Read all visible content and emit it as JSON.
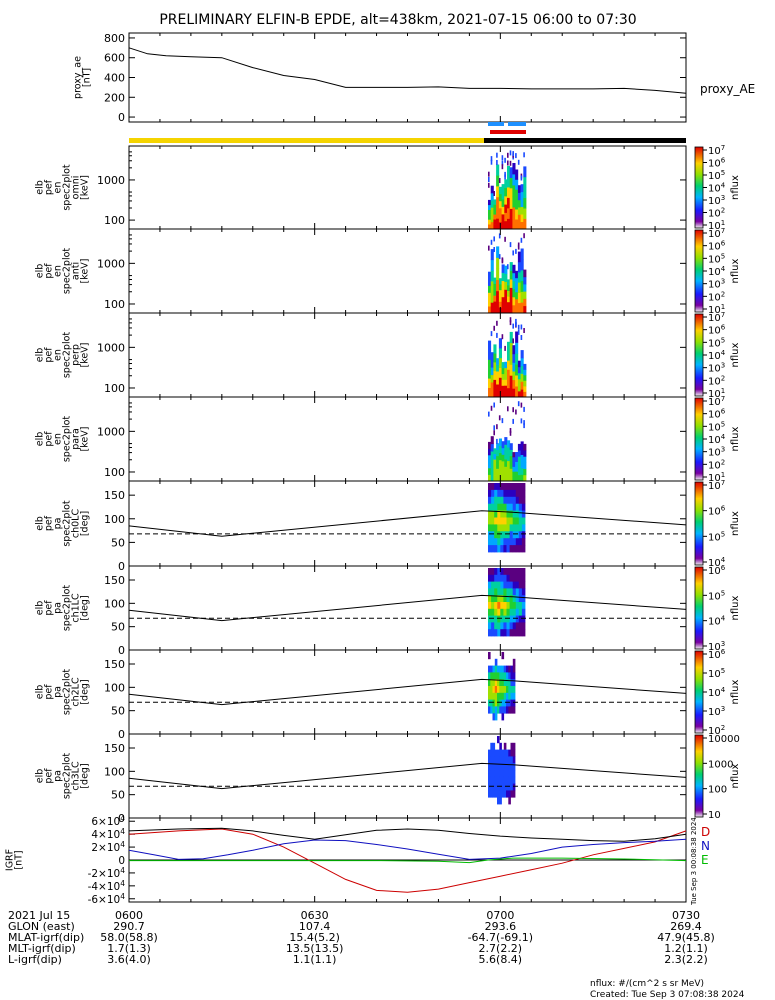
{
  "title": "PRELIMINARY ELFIN-B EPDE, alt=438km, 2021-07-15 06:00 to 07:30",
  "colors": {
    "gold": "#f5d400",
    "black": "#000000",
    "blue_bar": "#1e90ff",
    "red_bar": "#e00000",
    "grf_d": "#cc0000",
    "grf_n": "#1010c0",
    "grf_e": "#00bb00"
  },
  "chart_data": [
    {
      "id": "proxy_ae",
      "type": "line",
      "ylabel_lines": [
        "proxy_ae",
        "[nT]"
      ],
      "legend": "proxy_AE",
      "ylim": [
        -50,
        850
      ],
      "yticks": [
        "0",
        "200",
        "400",
        "600",
        "800"
      ],
      "x": [
        0,
        3,
        6,
        10,
        15,
        20,
        25,
        30,
        35,
        40,
        45,
        50,
        55,
        60,
        65,
        70,
        75,
        80,
        85,
        90
      ],
      "y": [
        700,
        640,
        620,
        610,
        600,
        500,
        420,
        380,
        300,
        300,
        300,
        305,
        290,
        290,
        285,
        285,
        285,
        290,
        270,
        240
      ]
    },
    {
      "id": "omni",
      "type": "heatmap",
      "ylabel_lines": [
        "elb",
        "pef",
        "en",
        "spec2plot",
        "omni",
        "[keV]"
      ],
      "yticks": [
        "100",
        "1000"
      ],
      "cbar_ticks": [
        "10^1",
        "10^2",
        "10^3",
        "10^4",
        "10^5",
        "10^6",
        "10^7"
      ],
      "cbar_label": "nflux"
    },
    {
      "id": "anti",
      "type": "heatmap",
      "ylabel_lines": [
        "elb",
        "pef",
        "en",
        "spec2plot",
        "anti",
        "[keV]"
      ],
      "yticks": [
        "100",
        "1000"
      ],
      "cbar_ticks": [
        "10^1",
        "10^2",
        "10^3",
        "10^4",
        "10^5",
        "10^6",
        "10^7"
      ],
      "cbar_label": "nflux"
    },
    {
      "id": "perp",
      "type": "heatmap",
      "ylabel_lines": [
        "elb",
        "pef",
        "en",
        "spec2plot",
        "perp",
        "[keV]"
      ],
      "yticks": [
        "100",
        "1000"
      ],
      "cbar_ticks": [
        "10^1",
        "10^2",
        "10^3",
        "10^4",
        "10^5",
        "10^6",
        "10^7"
      ],
      "cbar_label": "nflux"
    },
    {
      "id": "para",
      "type": "heatmap",
      "ylabel_lines": [
        "elb",
        "pef",
        "en",
        "spec2plot",
        "para",
        "[keV]"
      ],
      "yticks": [
        "100",
        "1000"
      ],
      "cbar_ticks": [
        "10^1",
        "10^2",
        "10^3",
        "10^4",
        "10^5",
        "10^6",
        "10^7"
      ],
      "cbar_label": "nflux"
    },
    {
      "id": "ch0LC",
      "type": "heatmap",
      "ylabel_lines": [
        "elb",
        "pef",
        "pa",
        "spec2plot",
        "ch0LC",
        "[deg]"
      ],
      "yticks": [
        "0",
        "50",
        "100",
        "150"
      ],
      "cbar_ticks": [
        "10^4",
        "10^5",
        "10^6",
        "10^7"
      ],
      "cbar_label": "nflux"
    },
    {
      "id": "ch1LC",
      "type": "heatmap",
      "ylabel_lines": [
        "elb",
        "pef",
        "pa",
        "spec2plot",
        "ch1LC",
        "[deg]"
      ],
      "yticks": [
        "0",
        "50",
        "100",
        "150"
      ],
      "cbar_ticks": [
        "10^3",
        "10^4",
        "10^5",
        "10^6"
      ],
      "cbar_label": "nflux"
    },
    {
      "id": "ch2LC",
      "type": "heatmap",
      "ylabel_lines": [
        "elb",
        "pef",
        "pa",
        "spec2plot",
        "ch2LC",
        "[deg]"
      ],
      "yticks": [
        "0",
        "50",
        "100",
        "150"
      ],
      "cbar_ticks": [
        "10^2",
        "10^3",
        "10^4",
        "10^5",
        "10^6"
      ],
      "cbar_label": "nflux"
    },
    {
      "id": "ch3LC",
      "type": "heatmap",
      "ylabel_lines": [
        "elb",
        "pef",
        "pa",
        "spec2plot",
        "ch3LC",
        "[deg]"
      ],
      "yticks": [
        "0",
        "50",
        "100",
        "150"
      ],
      "cbar_ticks": [
        "10",
        "100",
        "1000",
        "10000"
      ],
      "cbar_label": "nflux"
    },
    {
      "id": "igrf",
      "type": "line",
      "ylabel_lines": [
        "IGRF",
        "[nT]"
      ],
      "ylim": [
        -65000,
        65000
      ],
      "yticks": [
        "-6×10^4",
        "-4×10^4",
        "-2×10^4",
        "0",
        "2×10^4",
        "4×10^4",
        "6×10^4"
      ],
      "series": [
        {
          "name": "D",
          "color": "#cc0000",
          "x": [
            0,
            8,
            15,
            20,
            25,
            30,
            35,
            40,
            45,
            50,
            55,
            60,
            65,
            70,
            75,
            80,
            85,
            90
          ],
          "y": [
            40000,
            45000,
            48000,
            40000,
            20000,
            -5000,
            -30000,
            -47000,
            -50000,
            -45000,
            -35000,
            -25000,
            -15000,
            -5000,
            8000,
            18000,
            28000,
            45000
          ]
        },
        {
          "name": "N",
          "color": "#1010c0",
          "x": [
            0,
            4,
            8,
            12,
            16,
            20,
            25,
            30,
            35,
            40,
            45,
            50,
            55,
            60,
            65,
            70,
            75,
            80,
            85,
            90
          ],
          "y": [
            15000,
            8000,
            1000,
            2000,
            8000,
            15000,
            25000,
            31000,
            30000,
            24000,
            17000,
            9000,
            1000,
            3000,
            10000,
            20000,
            24000,
            27000,
            29000,
            32000
          ]
        },
        {
          "name": "E",
          "color": "#00bb00",
          "x": [
            0,
            10,
            20,
            30,
            40,
            50,
            55,
            58,
            62,
            70,
            80,
            90
          ],
          "y": [
            -1000,
            -1000,
            -1000,
            -1000,
            -1000,
            -2000,
            -4000,
            0,
            3000,
            3000,
            1500,
            -1000
          ]
        },
        {
          "name": "",
          "color": "#000000",
          "x": [
            0,
            8,
            15,
            20,
            25,
            30,
            35,
            40,
            45,
            50,
            55,
            60,
            65,
            70,
            75,
            80,
            85,
            90
          ],
          "y": [
            45000,
            48000,
            49000,
            45000,
            38000,
            32000,
            39000,
            46000,
            48000,
            46000,
            41000,
            37000,
            34000,
            32000,
            30000,
            29000,
            33000,
            40000
          ]
        }
      ],
      "legend": [
        "D",
        "N",
        "E"
      ]
    }
  ],
  "side_stamp": "Tue Sep  3 00:08:38 2024",
  "footer": {
    "rows": [
      {
        "label": "2021 Jul 15",
        "values": [
          "0600",
          "0630",
          "0700",
          "0730"
        ]
      },
      {
        "label": "GLON (east)",
        "values": [
          "290.7",
          "107.4",
          "293.6",
          "269.4"
        ]
      },
      {
        "label": "MLAT-igrf(dip)",
        "values": [
          "58.0(58.8)",
          "15.4(5.2)",
          "-64.7(-69.1)",
          "47.9(45.8)"
        ]
      },
      {
        "label": "MLT-igrf(dip)",
        "values": [
          "1.7(1.3)",
          "13.5(13.5)",
          "2.7(2.2)",
          "1.2(1.1)"
        ]
      },
      {
        "label": "L-igrf(dip)",
        "values": [
          "3.6(4.0)",
          "1.1(1.1)",
          "5.6(8.4)",
          "2.3(2.2)"
        ]
      }
    ],
    "units_note": "nflux: #/(cm^2 s sr MeV)",
    "created": "Created: Tue Sep  3 07:08:38 2024"
  }
}
